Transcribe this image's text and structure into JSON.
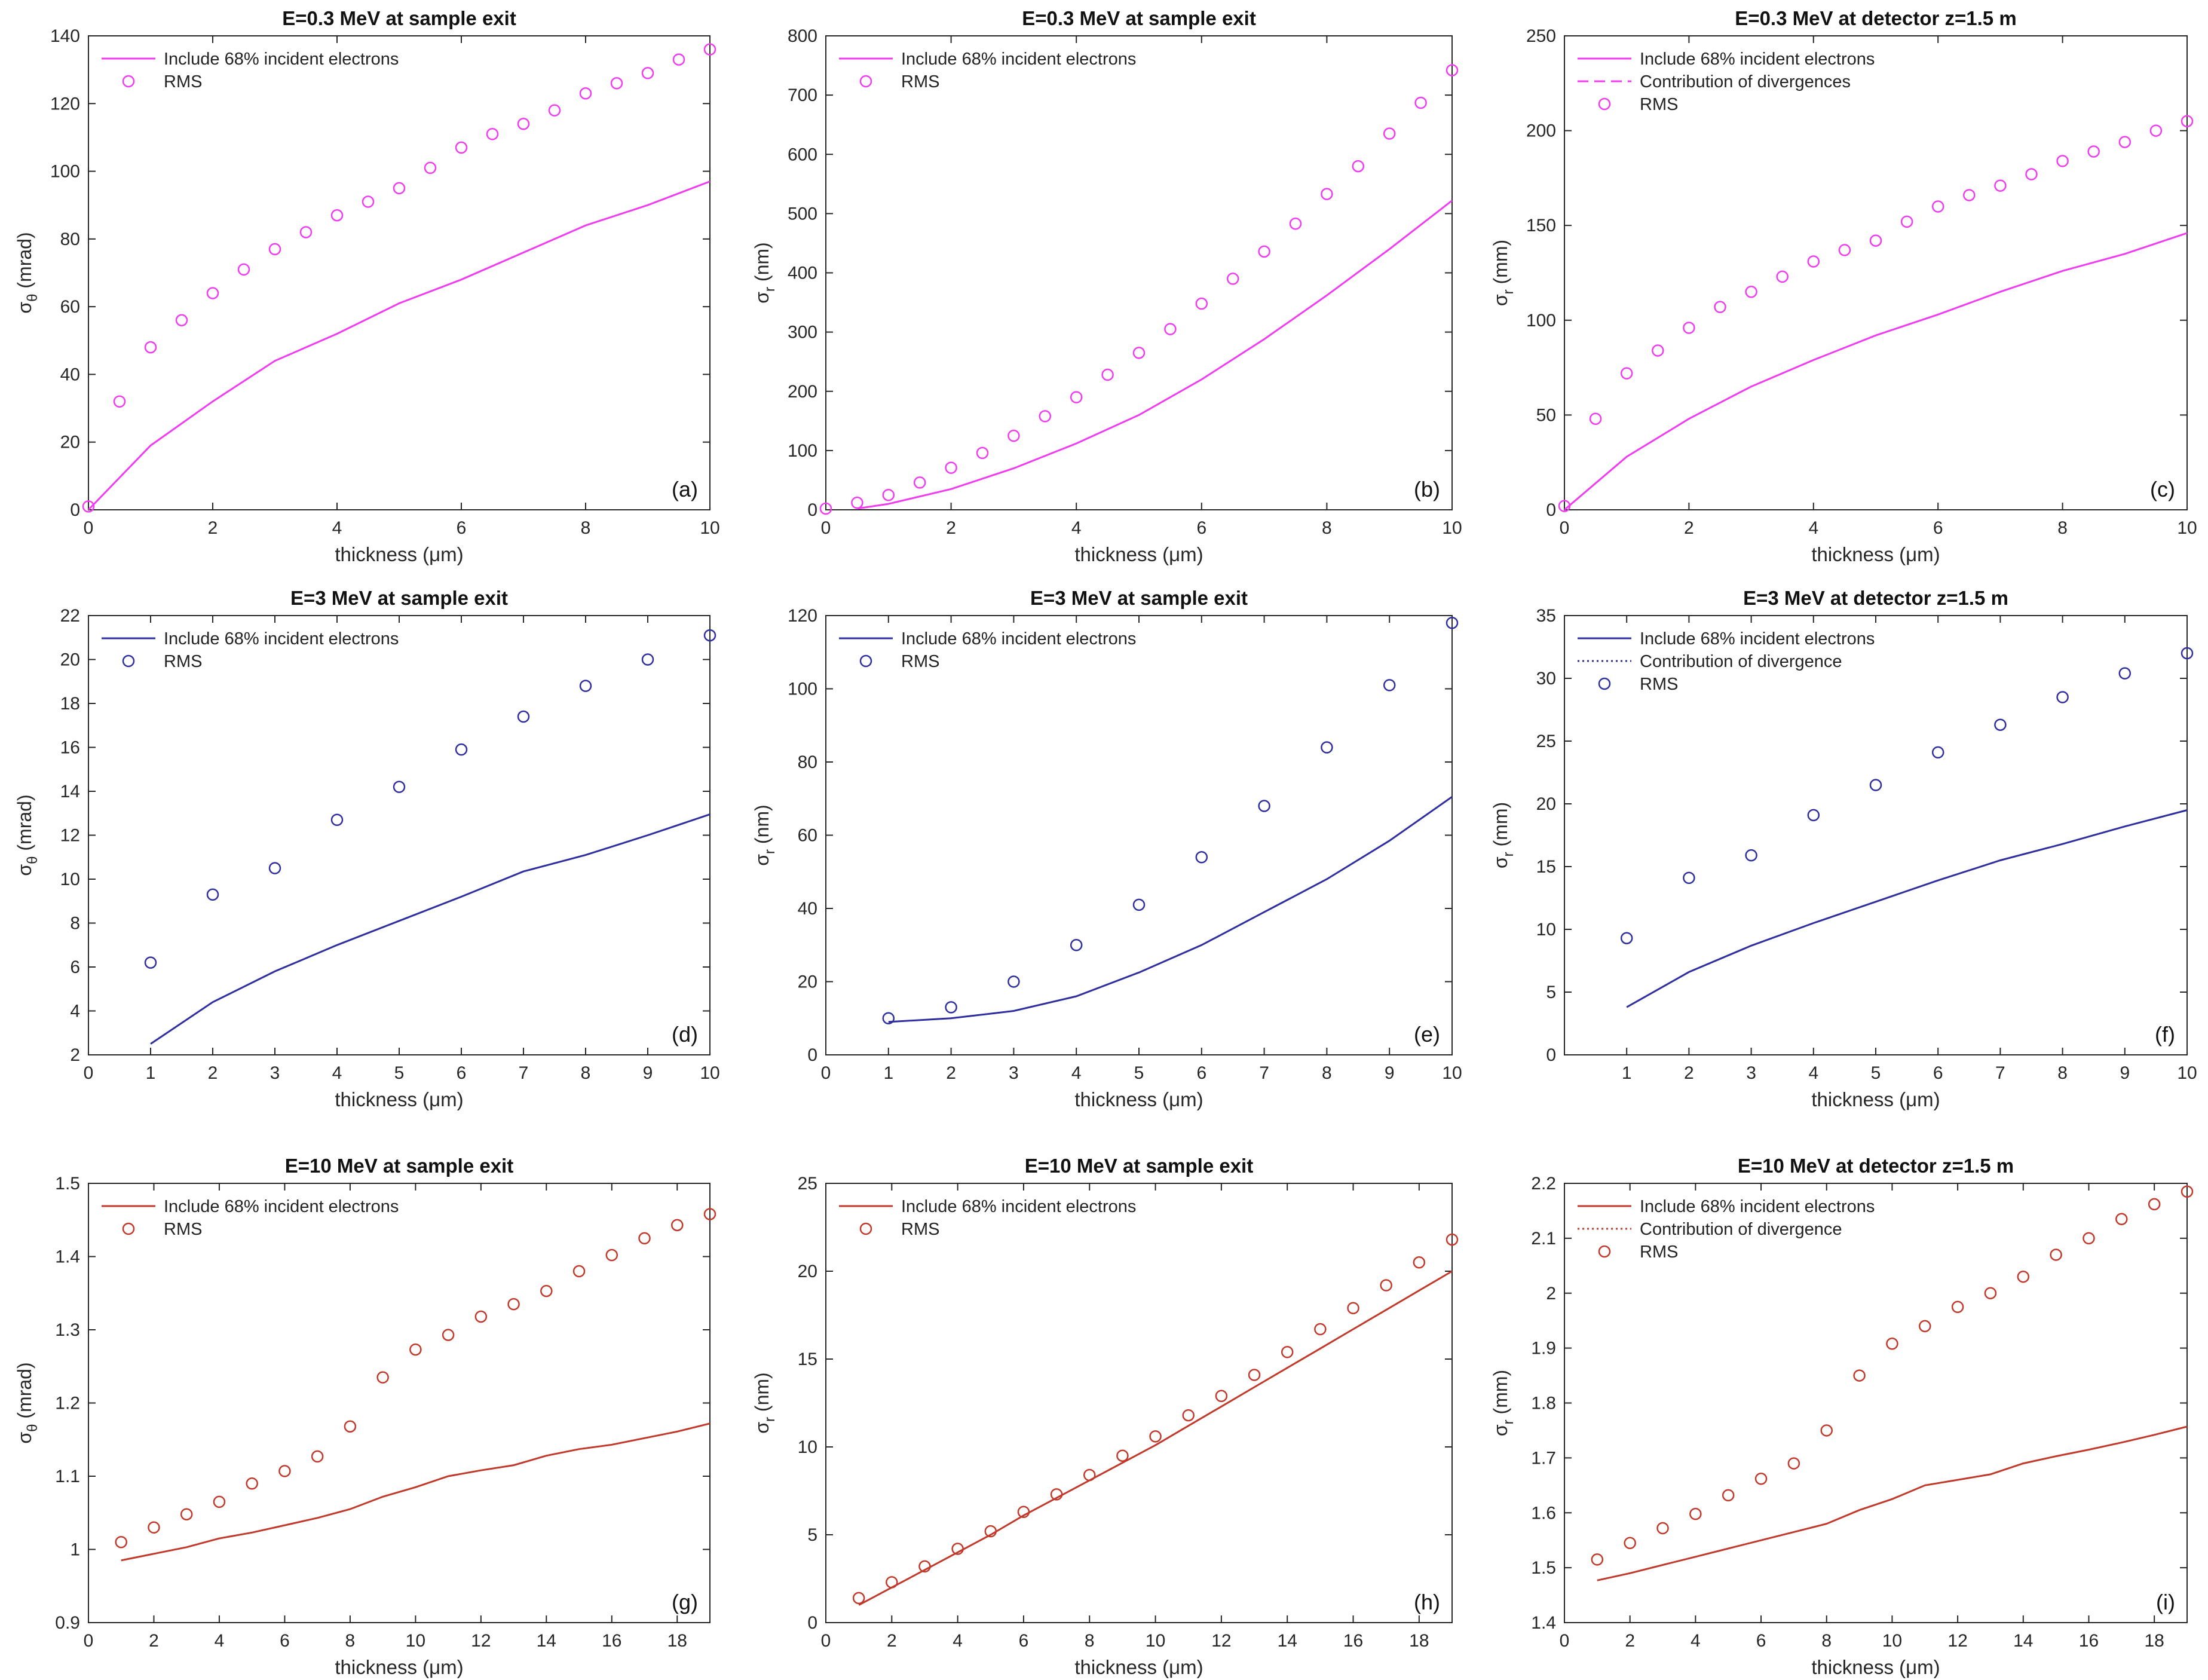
{
  "figure": {
    "xlabel_default": "thickness (μm)"
  },
  "chart_data": [
    {
      "id": "a",
      "type": "line",
      "panel_label": "(a)",
      "color": "#f03cf0",
      "title": "E=0.3 MeV at sample exit",
      "xlabel": "thickness (μm)",
      "ylabel_sym": "σ",
      "ylabel_sub": "θ",
      "ylabel_unit": " (mrad)",
      "xlim": [
        0,
        10
      ],
      "ylim": [
        0,
        140
      ],
      "xticks": [
        0,
        2,
        4,
        6,
        8,
        10
      ],
      "yticks": [
        0,
        20,
        40,
        60,
        80,
        100,
        120,
        140
      ],
      "legend": [
        "Include 68% incident electrons",
        "RMS"
      ],
      "legend_styles": [
        "solid",
        "circle"
      ],
      "series": [
        {
          "name": "Include 68% incident electrons",
          "style": "solid",
          "x": [
            0,
            1,
            2,
            3,
            4,
            5,
            6,
            7,
            8,
            9,
            10
          ],
          "y": [
            0,
            19,
            32,
            44,
            52,
            61,
            68,
            76,
            84,
            90,
            97
          ]
        },
        {
          "name": "RMS",
          "style": "circle",
          "x": [
            0,
            0.5,
            1,
            1.5,
            2,
            2.5,
            3,
            3.5,
            4,
            4.5,
            5,
            5.5,
            6,
            6.5,
            7,
            7.5,
            8,
            8.5,
            9,
            9.5,
            10
          ],
          "y": [
            1,
            32,
            48,
            56,
            64,
            71,
            77,
            82,
            87,
            91,
            95,
            101,
            107,
            111,
            114,
            118,
            123,
            126,
            129,
            133,
            136
          ]
        }
      ]
    },
    {
      "id": "b",
      "type": "line",
      "panel_label": "(b)",
      "color": "#f03cf0",
      "title": "E=0.3 MeV at sample exit",
      "xlabel": "thickness (μm)",
      "ylabel_sym": "σ",
      "ylabel_sub": "r",
      "ylabel_unit": " (nm)",
      "xlim": [
        0,
        10
      ],
      "ylim": [
        0,
        800
      ],
      "xticks": [
        0,
        2,
        4,
        6,
        8,
        10
      ],
      "yticks": [
        0,
        100,
        200,
        300,
        400,
        500,
        600,
        700,
        800
      ],
      "legend": [
        "Include 68% incident electrons",
        "RMS"
      ],
      "legend_styles": [
        "solid",
        "circle"
      ],
      "series": [
        {
          "name": "Include 68% incident electrons",
          "style": "solid",
          "x": [
            0.5,
            1,
            2,
            3,
            4,
            5,
            6,
            7,
            8,
            9,
            10
          ],
          "y": [
            2,
            10,
            35,
            70,
            112,
            160,
            220,
            288,
            362,
            440,
            522
          ]
        },
        {
          "name": "RMS",
          "style": "circle",
          "x": [
            0,
            0.5,
            1,
            1.5,
            2,
            2.5,
            3,
            3.5,
            4,
            4.5,
            5,
            5.5,
            6,
            6.5,
            7,
            7.5,
            8,
            8.5,
            9,
            9.5,
            10
          ],
          "y": [
            2,
            12,
            25,
            46,
            71,
            96,
            125,
            158,
            190,
            228,
            265,
            305,
            348,
            390,
            436,
            483,
            533,
            580,
            635,
            687,
            742
          ]
        }
      ]
    },
    {
      "id": "c",
      "type": "line",
      "panel_label": "(c)",
      "color": "#f03cf0",
      "title": "E=0.3 MeV at detector z=1.5 m",
      "xlabel": "thickness (μm)",
      "ylabel_sym": "σ",
      "ylabel_sub": "r",
      "ylabel_unit": " (mm)",
      "xlim": [
        0,
        10
      ],
      "ylim": [
        0,
        250
      ],
      "xticks": [
        0,
        2,
        4,
        6,
        8,
        10
      ],
      "yticks": [
        0,
        50,
        100,
        150,
        200,
        250
      ],
      "legend": [
        "Include 68% incident electrons",
        "Contribution of divergences",
        "RMS"
      ],
      "legend_styles": [
        "solid",
        "dashed",
        "circle"
      ],
      "series": [
        {
          "name": "Include 68% incident electrons",
          "style": "solid",
          "x": [
            0,
            1,
            2,
            3,
            4,
            5,
            6,
            7,
            8,
            9,
            10
          ],
          "y": [
            0,
            28,
            48,
            65,
            79,
            92,
            103,
            115,
            126,
            135,
            146
          ]
        },
        {
          "name": "RMS",
          "style": "circle",
          "x": [
            0,
            0.5,
            1,
            1.5,
            2,
            2.5,
            3,
            3.5,
            4,
            4.5,
            5,
            5.5,
            6,
            6.5,
            7,
            7.5,
            8,
            8.5,
            9,
            9.5,
            10
          ],
          "y": [
            2,
            48,
            72,
            84,
            96,
            107,
            115,
            123,
            131,
            137,
            142,
            152,
            160,
            166,
            171,
            177,
            184,
            189,
            194,
            200,
            205
          ]
        }
      ]
    },
    {
      "id": "d",
      "type": "line",
      "panel_label": "(d)",
      "color": "#2e2e9e",
      "title": "E=3 MeV at sample exit",
      "xlabel": "thickness (μm)",
      "ylabel_sym": "σ",
      "ylabel_sub": "θ",
      "ylabel_unit": " (mrad)",
      "xlim": [
        0,
        10
      ],
      "ylim": [
        2,
        22
      ],
      "xticks": [
        0,
        1,
        2,
        3,
        4,
        5,
        6,
        7,
        8,
        9,
        10
      ],
      "yticks": [
        2,
        4,
        6,
        8,
        10,
        12,
        14,
        16,
        18,
        20,
        22
      ],
      "legend": [
        "Include 68% incident electrons",
        "RMS"
      ],
      "legend_styles": [
        "solid",
        "circle"
      ],
      "series": [
        {
          "name": "Include 68% incident electrons",
          "style": "solid",
          "x": [
            1,
            2,
            3,
            4,
            5,
            6,
            7,
            8,
            9,
            10
          ],
          "y": [
            2.5,
            4.4,
            5.8,
            7.0,
            8.1,
            9.2,
            10.35,
            11.1,
            12.0,
            12.95
          ]
        },
        {
          "name": "RMS",
          "style": "circle",
          "x": [
            1,
            2,
            3,
            4,
            5,
            6,
            7,
            8,
            9,
            10
          ],
          "y": [
            6.2,
            9.3,
            10.5,
            12.7,
            14.2,
            15.9,
            17.4,
            18.8,
            20.0,
            21.1
          ]
        }
      ]
    },
    {
      "id": "e",
      "type": "line",
      "panel_label": "(e)",
      "color": "#2e2e9e",
      "title": "E=3 MeV at sample exit",
      "xlabel": "thickness (μm)",
      "ylabel_sym": "σ",
      "ylabel_sub": "r",
      "ylabel_unit": " (nm)",
      "xlim": [
        0,
        10
      ],
      "ylim": [
        0,
        120
      ],
      "xticks": [
        0,
        1,
        2,
        3,
        4,
        5,
        6,
        7,
        8,
        9,
        10
      ],
      "yticks": [
        0,
        20,
        40,
        60,
        80,
        100,
        120
      ],
      "legend": [
        "Include 68% incident electrons",
        "RMS"
      ],
      "legend_styles": [
        "solid",
        "circle"
      ],
      "series": [
        {
          "name": "Include 68% incident electrons",
          "style": "solid",
          "x": [
            1,
            2,
            3,
            4,
            5,
            6,
            7,
            8,
            9,
            10
          ],
          "y": [
            9,
            10,
            12,
            16,
            22.5,
            30,
            39,
            48,
            58.5,
            70.5
          ]
        },
        {
          "name": "RMS",
          "style": "circle",
          "x": [
            1,
            2,
            3,
            4,
            5,
            6,
            7,
            8,
            9,
            10
          ],
          "y": [
            10,
            13,
            20,
            30,
            41,
            54,
            68,
            84,
            101,
            118
          ]
        }
      ]
    },
    {
      "id": "f",
      "type": "line",
      "panel_label": "(f)",
      "color": "#2e2e9e",
      "title": "E=3 MeV at detector z=1.5 m",
      "xlabel": "thickness (μm)",
      "ylabel_sym": "σ",
      "ylabel_sub": "r",
      "ylabel_unit": " (mm)",
      "xlim": [
        0,
        10
      ],
      "ylim": [
        0,
        35
      ],
      "xticks": [
        1,
        2,
        3,
        4,
        5,
        6,
        7,
        8,
        9,
        10
      ],
      "yticks": [
        0,
        5,
        10,
        15,
        20,
        25,
        30,
        35
      ],
      "legend": [
        "Include 68% incident electrons",
        "Contribution of divergence",
        "RMS"
      ],
      "legend_styles": [
        "solid",
        "dotted",
        "circle"
      ],
      "series": [
        {
          "name": "Include 68% incident electrons",
          "style": "solid",
          "x": [
            1,
            2,
            3,
            4,
            5,
            6,
            7,
            8,
            9,
            10
          ],
          "y": [
            3.8,
            6.6,
            8.7,
            10.5,
            12.2,
            13.9,
            15.5,
            16.8,
            18.2,
            19.5
          ]
        },
        {
          "name": "RMS",
          "style": "circle",
          "x": [
            1,
            2,
            3,
            4,
            5,
            6,
            7,
            8,
            9,
            10
          ],
          "y": [
            9.3,
            14.1,
            15.9,
            19.1,
            21.5,
            24.1,
            26.3,
            28.5,
            30.4,
            32.0
          ]
        }
      ]
    },
    {
      "id": "g",
      "type": "line",
      "panel_label": "(g)",
      "color": "#c0392b",
      "title": "E=10 MeV at sample exit",
      "xlabel": "thickness (μm)",
      "ylabel_sym": "σ",
      "ylabel_sub": "θ",
      "ylabel_unit": " (mrad)",
      "xlim": [
        0,
        19
      ],
      "ylim": [
        0.9,
        1.5
      ],
      "xticks": [
        0,
        2,
        4,
        6,
        8,
        10,
        12,
        14,
        16,
        18
      ],
      "yticks": [
        0.9,
        1,
        1.1,
        1.2,
        1.3,
        1.4,
        1.5
      ],
      "legend": [
        "Include 68% incident electrons",
        "RMS"
      ],
      "legend_styles": [
        "solid",
        "circle"
      ],
      "series": [
        {
          "name": "Include 68% incident electrons",
          "style": "solid",
          "x": [
            1,
            2,
            3,
            4,
            5,
            6,
            7,
            8,
            9,
            10,
            11,
            12,
            13,
            14,
            15,
            16,
            17,
            18,
            19
          ],
          "y": [
            0.985,
            0.994,
            1.003,
            1.015,
            1.023,
            1.033,
            1.043,
            1.055,
            1.072,
            1.085,
            1.1,
            1.108,
            1.115,
            1.128,
            1.137,
            1.143,
            1.152,
            1.161,
            1.172
          ]
        },
        {
          "name": "RMS",
          "style": "circle",
          "x": [
            1,
            2,
            3,
            4,
            5,
            6,
            7,
            8,
            9,
            10,
            11,
            12,
            13,
            14,
            15,
            16,
            17,
            18,
            19
          ],
          "y": [
            1.01,
            1.03,
            1.048,
            1.065,
            1.09,
            1.107,
            1.127,
            1.168,
            1.235,
            1.273,
            1.293,
            1.318,
            1.335,
            1.353,
            1.38,
            1.402,
            1.425,
            1.443,
            1.458
          ]
        }
      ]
    },
    {
      "id": "h",
      "type": "line",
      "panel_label": "(h)",
      "color": "#c0392b",
      "title": "E=10 MeV at sample exit",
      "xlabel": "thickness (μm)",
      "ylabel_sym": "σ",
      "ylabel_sub": "r",
      "ylabel_unit": " (nm)",
      "xlim": [
        0,
        19
      ],
      "ylim": [
        0,
        25
      ],
      "xticks": [
        0,
        2,
        4,
        6,
        8,
        10,
        12,
        14,
        16,
        18
      ],
      "yticks": [
        0,
        5,
        10,
        15,
        20,
        25
      ],
      "legend": [
        "Include 68% incident electrons",
        "RMS"
      ],
      "legend_styles": [
        "solid",
        "circle"
      ],
      "series": [
        {
          "name": "Include 68% incident electrons",
          "style": "solid",
          "x": [
            1,
            2,
            3,
            4,
            5,
            6,
            7,
            8,
            9,
            10,
            11,
            12,
            13,
            14,
            15,
            16,
            17,
            18,
            19
          ],
          "y": [
            1.0,
            2.0,
            3.0,
            4.0,
            5.0,
            6.1,
            7.1,
            8.1,
            9.1,
            10.1,
            11.2,
            12.3,
            13.4,
            14.5,
            15.6,
            16.7,
            17.8,
            18.9,
            20.0
          ]
        },
        {
          "name": "RMS",
          "style": "circle",
          "x": [
            1,
            2,
            3,
            4,
            5,
            6,
            7,
            8,
            9,
            10,
            11,
            12,
            13,
            14,
            15,
            16,
            17,
            18,
            19
          ],
          "y": [
            1.4,
            2.3,
            3.2,
            4.2,
            5.2,
            6.3,
            7.3,
            8.4,
            9.5,
            10.6,
            11.8,
            12.9,
            14.1,
            15.4,
            16.7,
            17.9,
            19.2,
            20.5,
            21.8
          ]
        }
      ]
    },
    {
      "id": "i",
      "type": "line",
      "panel_label": "(i)",
      "color": "#c0392b",
      "title": "E=10 MeV at detector z=1.5 m",
      "xlabel": "thickness (μm)",
      "ylabel_sym": "σ",
      "ylabel_sub": "r",
      "ylabel_unit": " (mm)",
      "xlim": [
        0,
        19
      ],
      "ylim": [
        1.4,
        2.2
      ],
      "xticks": [
        0,
        2,
        4,
        6,
        8,
        10,
        12,
        14,
        16,
        18
      ],
      "yticks": [
        1.4,
        1.5,
        1.6,
        1.7,
        1.8,
        1.9,
        2,
        2.1,
        2.2
      ],
      "legend": [
        "Include 68% incident electrons",
        "Contribution of divergence",
        "RMS"
      ],
      "legend_styles": [
        "solid",
        "dotted",
        "circle"
      ],
      "series": [
        {
          "name": "Include 68% incident electrons",
          "style": "solid",
          "x": [
            1,
            2,
            3,
            4,
            5,
            6,
            7,
            8,
            9,
            10,
            11,
            12,
            13,
            14,
            15,
            16,
            17,
            18,
            19
          ],
          "y": [
            1.477,
            1.49,
            1.505,
            1.52,
            1.535,
            1.55,
            1.565,
            1.58,
            1.605,
            1.625,
            1.65,
            1.66,
            1.67,
            1.69,
            1.703,
            1.715,
            1.728,
            1.742,
            1.757
          ]
        },
        {
          "name": "RMS",
          "style": "circle",
          "x": [
            1,
            2,
            3,
            4,
            5,
            6,
            7,
            8,
            9,
            10,
            11,
            12,
            13,
            14,
            15,
            16,
            17,
            18,
            19
          ],
          "y": [
            1.515,
            1.545,
            1.572,
            1.598,
            1.632,
            1.662,
            1.69,
            1.75,
            1.85,
            1.908,
            1.94,
            1.975,
            2.0,
            2.03,
            2.07,
            2.1,
            2.135,
            2.162,
            2.185
          ]
        }
      ]
    }
  ]
}
